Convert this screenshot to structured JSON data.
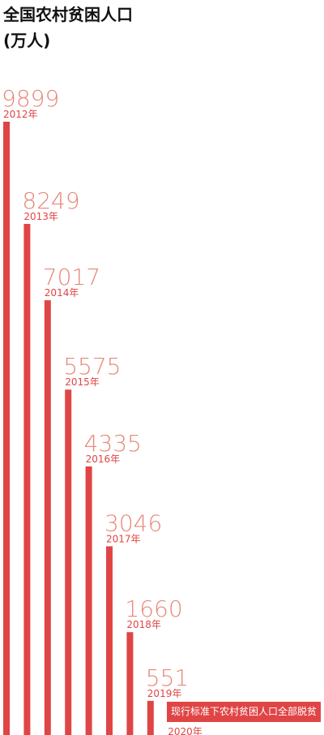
{
  "header": {
    "title_line1": "全国农村贫困人口",
    "title_line2": "(万人)"
  },
  "colors": {
    "bar": "#e04545",
    "value_label": "#e8887a",
    "year_label": "#e04545",
    "title": "#111111"
  },
  "chart_data": {
    "type": "bar",
    "title": "全国农村贫困人口(万人)",
    "categories": [
      "2012年",
      "2013年",
      "2014年",
      "2015年",
      "2016年",
      "2017年",
      "2018年",
      "2019年",
      "2020年"
    ],
    "values": [
      9899,
      8249,
      7017,
      5575,
      4335,
      3046,
      1660,
      551,
      0
    ],
    "value_labels": [
      "9899",
      "8249",
      "7017",
      "5575",
      "4335",
      "3046",
      "1660",
      "551",
      ""
    ],
    "annotation": "现行标准下农村贫困人口全部脱贫",
    "xlabel": "",
    "ylabel": "",
    "ylim": [
      0,
      9899
    ],
    "grid": false,
    "legend": "none"
  }
}
